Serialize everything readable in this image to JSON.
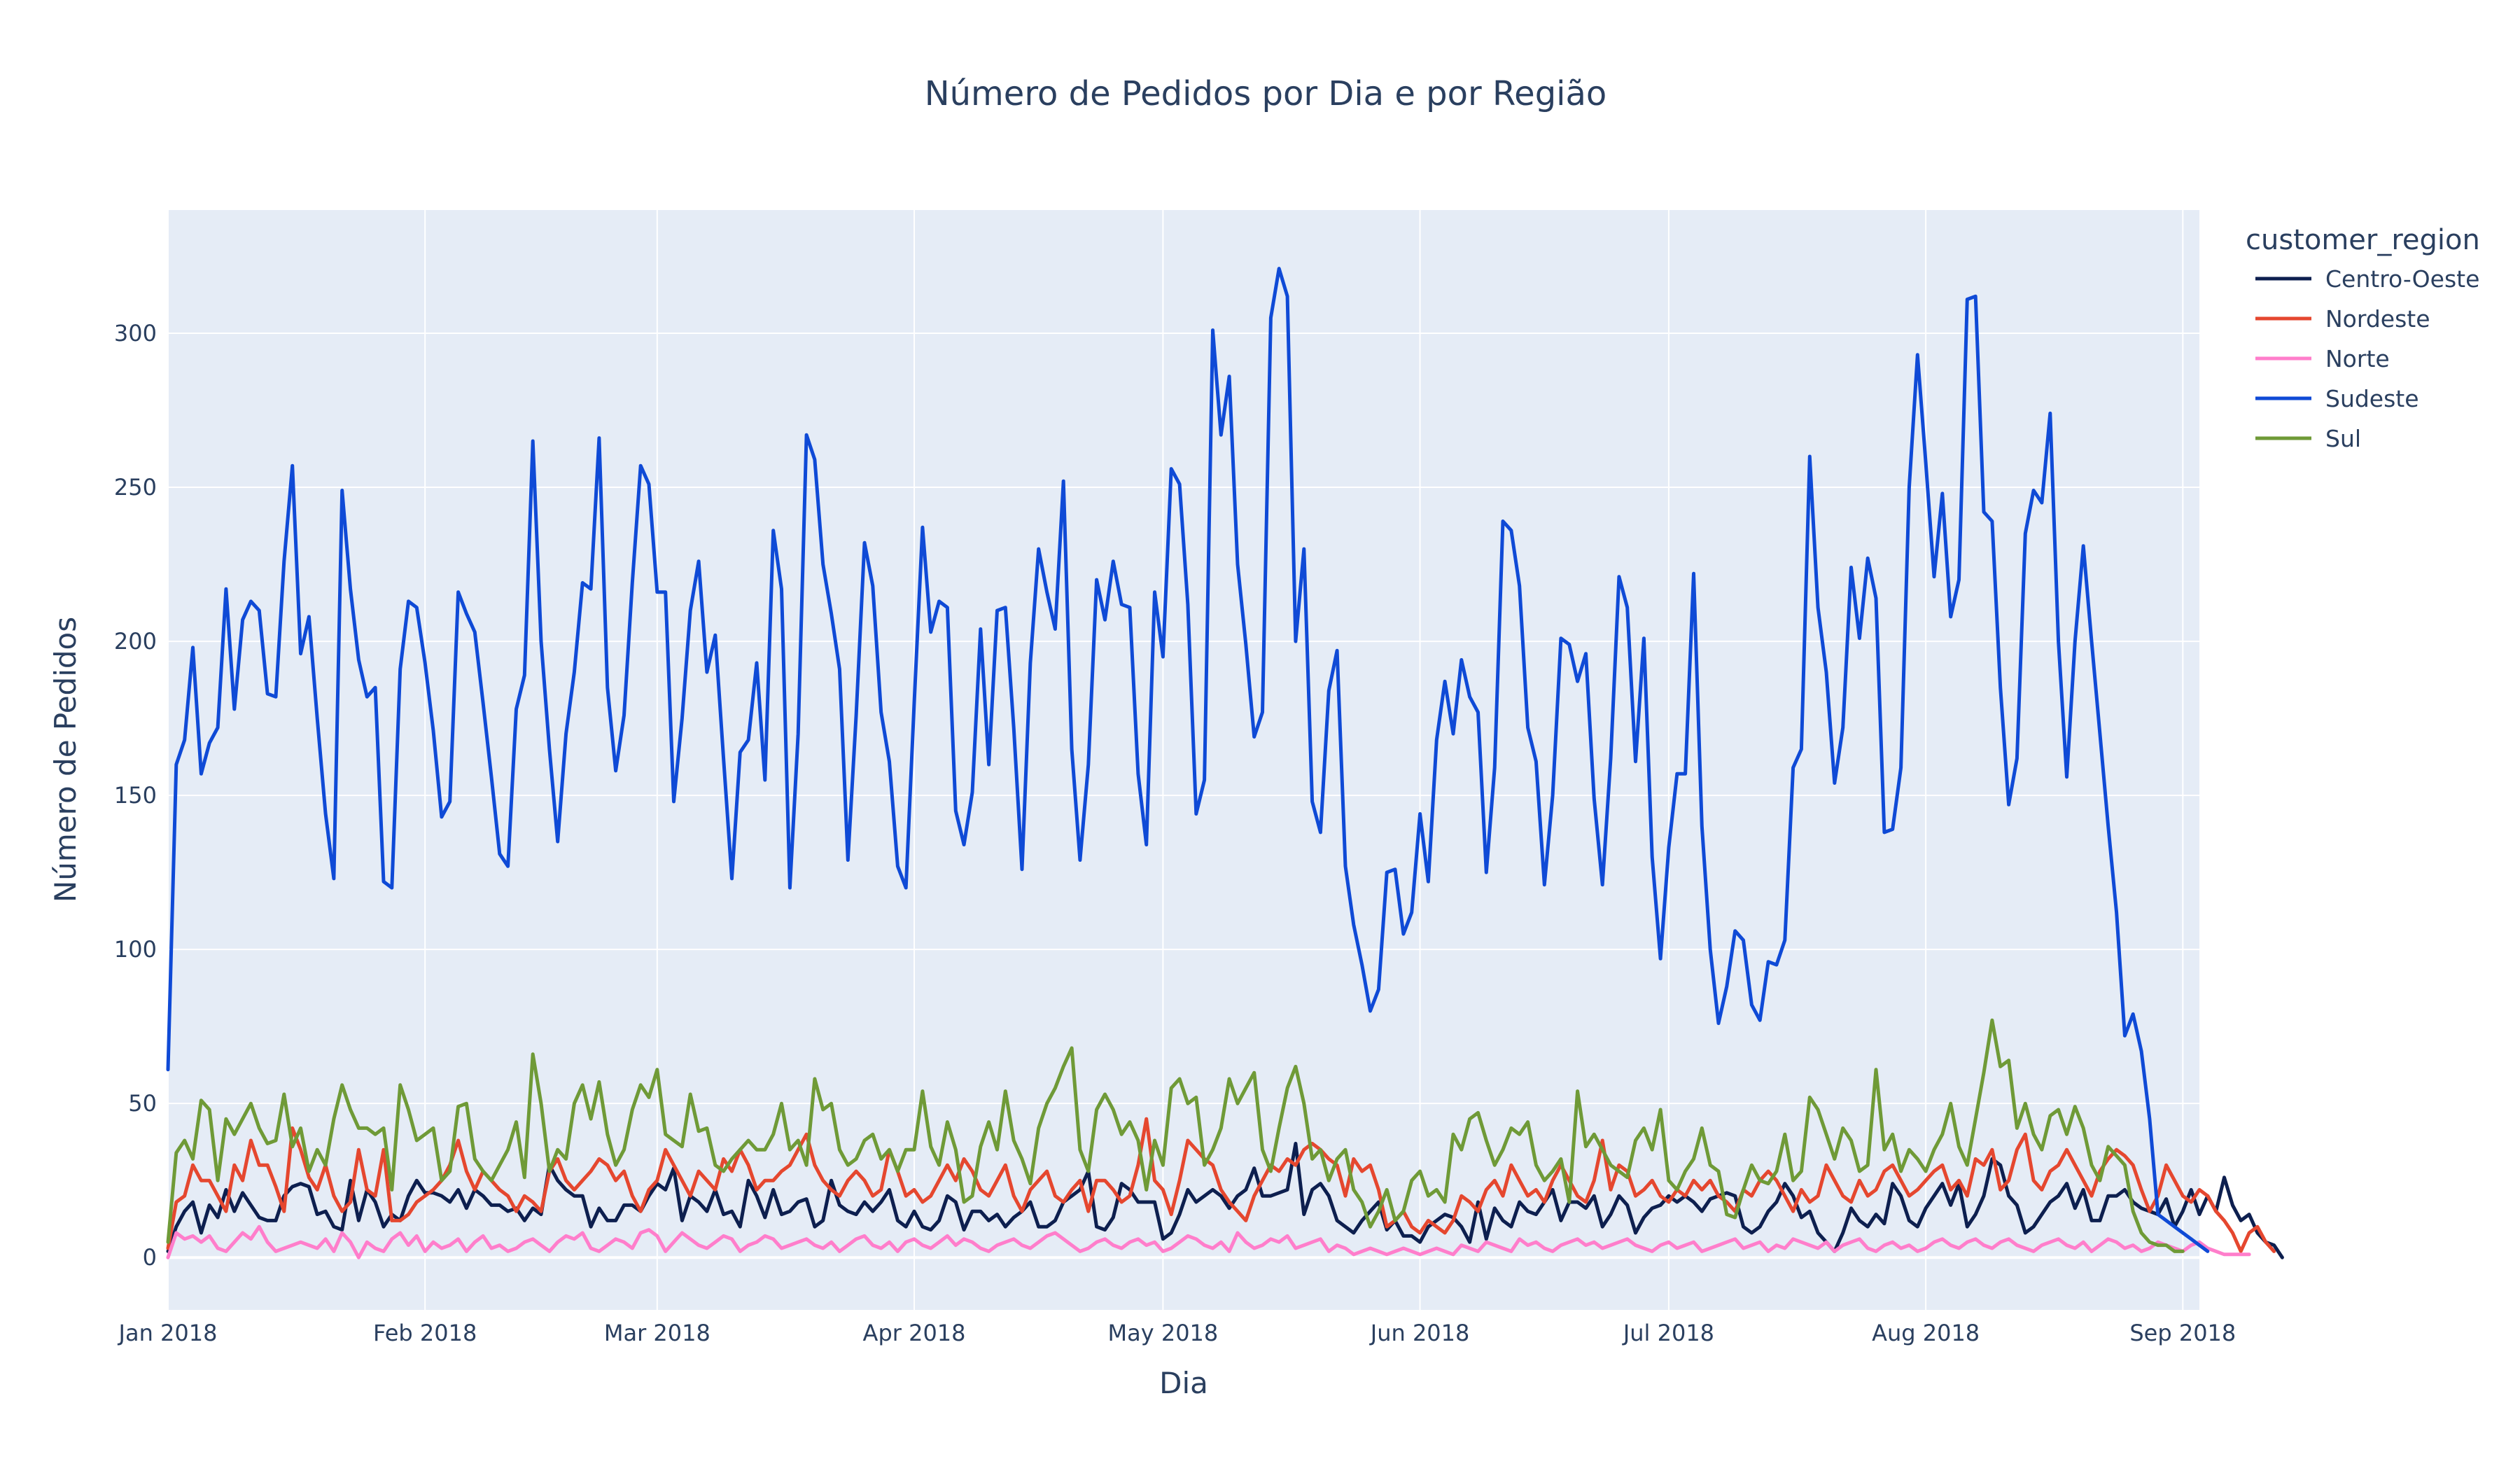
{
  "chart_data": {
    "type": "line",
    "title": "Número de Pedidos por Dia e por Região",
    "xlabel": "Dia",
    "ylabel": "Número de Pedidos",
    "x_start": "2018-01-01",
    "xlim": [
      "2018-01-01",
      "2018-09-03"
    ],
    "ylim": [
      -17,
      340
    ],
    "x_ticks": [
      {
        "date": "2018-01-01",
        "label": "Jan 2018"
      },
      {
        "date": "2018-02-01",
        "label": "Feb 2018"
      },
      {
        "date": "2018-03-01",
        "label": "Mar 2018"
      },
      {
        "date": "2018-04-01",
        "label": "Apr 2018"
      },
      {
        "date": "2018-05-01",
        "label": "May 2018"
      },
      {
        "date": "2018-06-01",
        "label": "Jun 2018"
      },
      {
        "date": "2018-07-01",
        "label": "Jul 2018"
      },
      {
        "date": "2018-08-01",
        "label": "Aug 2018"
      },
      {
        "date": "2018-09-01",
        "label": "Sep 2018"
      }
    ],
    "y_ticks": [
      0,
      50,
      100,
      150,
      200,
      250,
      300
    ],
    "grid": true,
    "plot_bgcolor": "#E5ECF6",
    "legend": {
      "title": "customer_region",
      "placement": "right"
    },
    "series": [
      {
        "name": "Centro-Oeste",
        "color": "#0d1f4f",
        "daily_values": [
          2,
          10,
          15,
          18,
          8,
          17,
          13,
          22,
          15,
          21,
          17,
          13,
          12,
          12,
          20,
          23,
          24,
          23,
          14,
          15,
          10,
          9,
          25,
          12,
          22,
          18,
          10,
          14,
          12,
          20,
          25,
          21,
          21,
          20,
          18,
          22,
          16,
          22,
          20,
          17,
          17,
          15,
          16,
          12,
          16,
          14,
          30,
          25,
          22,
          20,
          20,
          10,
          16,
          12,
          12,
          17,
          17,
          15,
          20,
          24,
          22,
          29,
          12,
          20,
          18,
          15,
          22,
          14,
          15,
          10,
          25,
          20,
          13,
          22,
          14,
          15,
          18,
          19,
          10,
          12,
          25,
          17,
          15,
          14,
          18,
          15,
          18,
          22,
          12,
          10,
          15,
          10,
          9,
          12,
          20,
          18,
          9,
          15,
          15,
          12,
          14,
          10,
          13,
          15,
          18,
          10,
          10,
          12,
          18,
          20,
          22,
          28,
          10,
          9,
          13,
          24,
          22,
          18,
          18,
          18,
          6,
          8,
          14,
          22,
          18,
          20,
          22,
          20,
          16,
          20,
          22,
          29,
          20,
          20,
          21,
          22,
          37,
          14,
          22,
          24,
          20,
          12,
          10,
          8,
          12,
          15,
          18,
          9,
          12,
          7,
          7,
          5,
          10,
          12,
          14,
          13,
          10,
          5,
          18,
          6,
          16,
          12,
          10,
          18,
          15,
          14,
          18,
          22,
          12,
          18,
          18,
          16,
          20,
          10,
          14,
          20,
          17,
          8,
          13,
          16,
          17,
          20,
          18,
          20,
          18,
          15,
          19,
          20,
          21,
          20,
          10,
          8,
          10,
          15,
          18,
          24,
          20,
          13,
          15,
          8,
          5,
          2,
          8,
          16,
          12,
          10,
          14,
          11,
          24,
          20,
          12,
          10,
          16,
          20,
          24,
          17,
          24,
          10,
          14,
          20,
          32,
          30,
          20,
          17,
          8,
          10,
          14,
          18,
          20,
          24,
          16,
          22,
          12,
          12,
          20,
          20,
          22,
          18,
          16,
          15,
          14,
          19,
          10,
          15,
          22,
          14,
          20,
          15,
          26,
          17,
          12,
          14,
          8,
          5,
          4,
          0
        ]
      },
      {
        "name": "Nordeste",
        "color": "#e5472f",
        "daily_values": [
          3,
          18,
          20,
          30,
          25,
          25,
          20,
          15,
          30,
          25,
          38,
          30,
          30,
          23,
          15,
          42,
          35,
          26,
          22,
          30,
          20,
          15,
          18,
          35,
          22,
          20,
          35,
          12,
          12,
          14,
          18,
          20,
          22,
          25,
          30,
          38,
          28,
          22,
          28,
          25,
          22,
          20,
          15,
          20,
          18,
          15,
          28,
          32,
          25,
          22,
          25,
          28,
          32,
          30,
          25,
          28,
          20,
          15,
          22,
          25,
          35,
          30,
          25,
          20,
          28,
          25,
          22,
          32,
          28,
          35,
          30,
          22,
          25,
          25,
          28,
          30,
          35,
          40,
          30,
          25,
          22,
          20,
          25,
          28,
          25,
          20,
          22,
          35,
          28,
          20,
          22,
          18,
          20,
          25,
          30,
          25,
          32,
          28,
          22,
          20,
          25,
          30,
          20,
          15,
          22,
          25,
          28,
          20,
          18,
          22,
          25,
          15,
          25,
          25,
          22,
          18,
          20,
          30,
          45,
          25,
          22,
          14,
          25,
          38,
          35,
          32,
          30,
          22,
          18,
          15,
          12,
          20,
          25,
          30,
          28,
          32,
          30,
          35,
          37,
          35,
          32,
          30,
          20,
          32,
          28,
          30,
          22,
          10,
          12,
          15,
          10,
          8,
          12,
          10,
          8,
          12,
          20,
          18,
          15,
          22,
          25,
          20,
          30,
          25,
          20,
          22,
          18,
          25,
          30,
          25,
          20,
          18,
          25,
          38,
          22,
          30,
          28,
          20,
          22,
          25,
          20,
          18,
          22,
          20,
          25,
          22,
          25,
          20,
          18,
          15,
          22,
          20,
          25,
          28,
          25,
          20,
          15,
          22,
          18,
          20,
          30,
          25,
          20,
          18,
          25,
          20,
          22,
          28,
          30,
          25,
          20,
          22,
          25,
          28,
          30,
          22,
          25,
          20,
          32,
          30,
          35,
          22,
          25,
          35,
          40,
          25,
          22,
          28,
          30,
          35,
          30,
          25,
          20,
          28,
          32,
          35,
          33,
          30,
          22,
          15,
          20,
          30,
          25,
          20,
          18,
          22,
          20,
          15,
          12,
          8,
          2,
          8,
          10,
          5,
          2
        ]
      },
      {
        "name": "Norte",
        "color": "#ff7ecb",
        "daily_values": [
          0,
          8,
          6,
          7,
          5,
          7,
          3,
          2,
          5,
          8,
          6,
          10,
          5,
          2,
          3,
          4,
          5,
          4,
          3,
          6,
          2,
          8,
          5,
          0,
          5,
          3,
          2,
          6,
          8,
          4,
          7,
          2,
          5,
          3,
          4,
          6,
          2,
          5,
          7,
          3,
          4,
          2,
          3,
          5,
          6,
          4,
          2,
          5,
          7,
          6,
          8,
          3,
          2,
          4,
          6,
          5,
          3,
          8,
          9,
          7,
          2,
          5,
          8,
          6,
          4,
          3,
          5,
          7,
          6,
          2,
          4,
          5,
          7,
          6,
          3,
          4,
          5,
          6,
          4,
          3,
          5,
          2,
          4,
          6,
          7,
          4,
          3,
          5,
          2,
          5,
          6,
          4,
          3,
          5,
          7,
          4,
          6,
          5,
          3,
          2,
          4,
          5,
          6,
          4,
          3,
          5,
          7,
          8,
          6,
          4,
          2,
          3,
          5,
          6,
          4,
          3,
          5,
          6,
          4,
          5,
          2,
          3,
          5,
          7,
          6,
          4,
          3,
          5,
          2,
          8,
          5,
          3,
          4,
          6,
          5,
          7,
          3,
          4,
          5,
          6,
          2,
          4,
          3,
          1,
          2,
          3,
          2,
          1,
          2,
          3,
          2,
          1,
          2,
          3,
          2,
          1,
          4,
          3,
          2,
          5,
          4,
          3,
          2,
          6,
          4,
          5,
          3,
          2,
          4,
          5,
          6,
          4,
          5,
          3,
          4,
          5,
          6,
          4,
          3,
          2,
          4,
          5,
          3,
          4,
          5,
          2,
          3,
          4,
          5,
          6,
          3,
          4,
          5,
          2,
          4,
          3,
          6,
          5,
          4,
          3,
          5,
          2,
          4,
          5,
          6,
          3,
          2,
          4,
          5,
          3,
          4,
          2,
          3,
          5,
          6,
          4,
          3,
          5,
          6,
          4,
          3,
          5,
          6,
          4,
          3,
          2,
          4,
          5,
          6,
          4,
          3,
          5,
          2,
          4,
          6,
          5,
          3,
          4,
          2,
          3,
          5,
          4,
          3,
          2,
          4,
          5,
          3,
          2,
          1,
          1,
          1,
          1
        ]
      },
      {
        "name": "Sudeste",
        "color": "#0f4ad6",
        "daily_values": [
          61,
          160,
          168,
          198,
          157,
          167,
          172,
          217,
          178,
          207,
          213,
          210,
          183,
          182,
          226,
          257,
          196,
          208,
          175,
          144,
          123,
          249,
          217,
          194,
          182,
          185,
          122,
          120,
          191,
          213,
          211,
          193,
          171,
          143,
          148,
          216,
          209,
          203,
          180,
          156,
          131,
          127,
          178,
          189,
          265,
          200,
          165,
          135,
          170,
          190,
          219,
          217,
          266,
          185,
          158,
          176,
          219,
          257,
          251,
          216,
          216,
          148,
          175,
          210,
          226,
          190,
          202,
          162,
          123,
          164,
          168,
          193,
          155,
          236,
          217,
          120,
          170,
          267,
          259,
          225,
          209,
          191,
          129,
          176,
          232,
          218,
          177,
          161,
          127,
          120,
          180,
          237,
          203,
          213,
          211,
          145,
          134,
          151,
          204,
          160,
          210,
          211,
          172,
          126,
          193,
          230,
          216,
          204,
          252,
          165,
          129,
          160,
          220,
          207,
          226,
          212,
          211,
          157,
          134,
          216,
          195,
          256,
          251,
          212,
          144,
          155,
          301,
          267,
          286,
          225,
          199,
          169,
          177,
          305,
          321,
          312,
          200,
          230,
          148,
          138,
          184,
          197,
          127,
          108,
          95,
          80,
          87,
          125,
          126,
          105,
          112,
          144,
          122,
          168,
          187,
          170,
          194,
          182,
          177,
          125,
          159,
          239,
          236,
          218,
          172,
          161,
          121,
          150,
          201,
          199,
          187,
          196,
          149,
          121,
          162,
          221,
          211,
          161,
          201,
          130,
          97,
          133,
          157,
          157,
          222,
          140,
          100,
          76,
          88,
          106,
          103,
          82,
          77,
          96,
          95,
          103,
          159,
          165,
          260,
          211,
          190,
          154,
          172,
          224,
          201,
          227,
          214,
          138,
          139,
          159,
          250,
          293,
          258,
          221,
          248,
          208,
          220,
          311,
          312,
          242,
          239,
          185,
          147,
          162,
          235,
          249,
          245,
          274,
          200,
          156,
          200,
          231,
          200,
          170,
          140,
          112,
          72,
          79,
          67,
          45,
          14,
          12,
          10,
          8,
          6,
          4,
          2
        ]
      },
      {
        "name": "Sul",
        "color": "#6f9a37",
        "daily_values": [
          5,
          34,
          38,
          32,
          51,
          48,
          25,
          45,
          40,
          45,
          50,
          42,
          37,
          38,
          53,
          36,
          42,
          28,
          35,
          30,
          45,
          56,
          48,
          42,
          42,
          40,
          42,
          22,
          56,
          48,
          38,
          40,
          42,
          25,
          28,
          49,
          50,
          32,
          28,
          25,
          30,
          35,
          44,
          26,
          66,
          50,
          28,
          35,
          32,
          50,
          56,
          45,
          57,
          40,
          30,
          35,
          48,
          56,
          52,
          61,
          40,
          38,
          36,
          53,
          41,
          42,
          30,
          28,
          32,
          35,
          38,
          35,
          35,
          40,
          50,
          35,
          38,
          30,
          58,
          48,
          50,
          35,
          30,
          32,
          38,
          40,
          32,
          35,
          28,
          35,
          35,
          54,
          36,
          30,
          44,
          35,
          18,
          20,
          36,
          44,
          35,
          54,
          38,
          32,
          24,
          42,
          50,
          55,
          62,
          68,
          35,
          28,
          48,
          53,
          48,
          40,
          44,
          38,
          22,
          38,
          30,
          55,
          58,
          50,
          52,
          30,
          35,
          42,
          58,
          50,
          55,
          60,
          35,
          28,
          42,
          55,
          62,
          50,
          32,
          35,
          25,
          32,
          35,
          22,
          18,
          10,
          15,
          22,
          12,
          15,
          25,
          28,
          20,
          22,
          18,
          40,
          35,
          45,
          47,
          38,
          30,
          35,
          42,
          40,
          44,
          30,
          25,
          28,
          32,
          18,
          54,
          36,
          40,
          35,
          30,
          28,
          26,
          38,
          42,
          35,
          48,
          25,
          22,
          28,
          32,
          42,
          30,
          28,
          14,
          13,
          22,
          30,
          25,
          24,
          28,
          40,
          25,
          28,
          52,
          48,
          40,
          32,
          42,
          38,
          28,
          30,
          61,
          35,
          40,
          28,
          35,
          32,
          28,
          35,
          40,
          50,
          36,
          30,
          45,
          60,
          77,
          62,
          64,
          42,
          50,
          40,
          35,
          46,
          48,
          40,
          49,
          42,
          30,
          25,
          36,
          33,
          30,
          15,
          8,
          5,
          4,
          4,
          2,
          2
        ]
      }
    ]
  }
}
